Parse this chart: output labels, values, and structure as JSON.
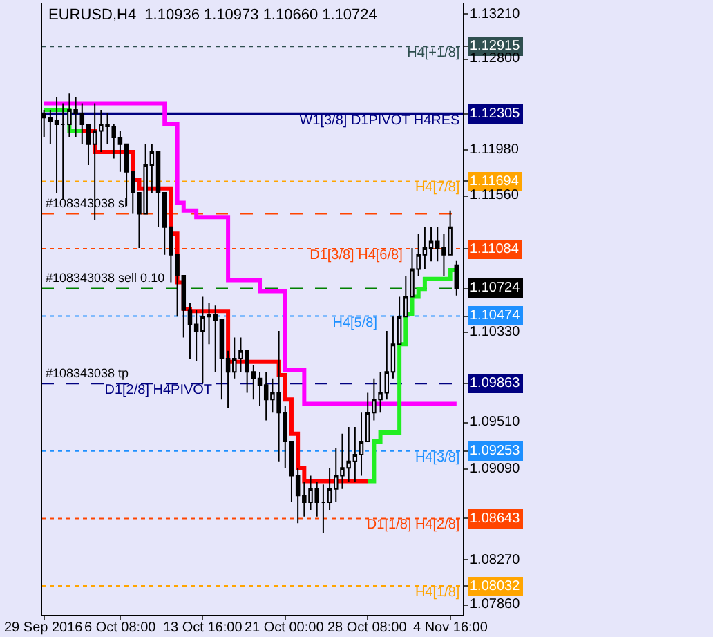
{
  "chart_data": {
    "type": "candlestick",
    "title": "EURUSD,H4  1.10936 1.10973 1.10660 1.10724",
    "categories": [
      "29 Sep 2016",
      null,
      null,
      null,
      null,
      null,
      null,
      null,
      null,
      null,
      null,
      null,
      "6 Oct 08:00",
      null,
      null,
      null,
      null,
      null,
      null,
      null,
      null,
      null,
      null,
      null,
      null,
      "13 Oct 16:00",
      null,
      null,
      null,
      null,
      null,
      null,
      null,
      null,
      null,
      null,
      null,
      null,
      "21 Oct 00:00",
      null,
      null,
      null,
      null,
      null,
      null,
      null,
      null,
      null,
      null,
      null,
      null,
      "28 Oct 08:00",
      null,
      null,
      null,
      null,
      null,
      null,
      null,
      null,
      null,
      null,
      null,
      null,
      "4 Nov 16:00",
      null
    ],
    "ohlc": [
      [
        1.1231,
        1.1234,
        1.1209,
        1.1227
      ],
      [
        1.1227,
        1.1234,
        1.1203,
        1.1224
      ],
      [
        1.1224,
        1.1246,
        1.1159,
        1.1221
      ],
      [
        1.1221,
        1.124,
        1.1153,
        1.1221
      ],
      [
        1.1221,
        1.1249,
        1.1209,
        1.1234
      ],
      [
        1.1234,
        1.1246,
        1.1209,
        1.1231
      ],
      [
        1.1231,
        1.124,
        1.1203,
        1.1221
      ],
      [
        1.1221,
        1.1221,
        1.1184,
        1.1203
      ],
      [
        1.1203,
        1.124,
        1.1134,
        1.1215
      ],
      [
        1.1215,
        1.1234,
        1.1196,
        1.1221
      ],
      [
        1.1221,
        1.1231,
        1.1203,
        1.1219
      ],
      [
        1.1219,
        1.1221,
        1.119,
        1.1209
      ],
      [
        1.1209,
        1.1215,
        1.1178,
        1.1203
      ],
      [
        1.1203,
        1.1203,
        1.1147,
        1.1178
      ],
      [
        1.1178,
        1.1178,
        1.114,
        1.1159
      ],
      [
        1.1159,
        1.1159,
        1.1109,
        1.114
      ],
      [
        1.114,
        1.1203,
        1.114,
        1.1184
      ],
      [
        1.1184,
        1.1203,
        1.1159,
        1.1196
      ],
      [
        1.1196,
        1.1196,
        1.1128,
        1.1159
      ],
      [
        1.1159,
        1.1159,
        1.1103,
        1.1128
      ],
      [
        1.1128,
        1.1128,
        1.1078,
        1.1103
      ],
      [
        1.1103,
        1.1103,
        1.1047,
        1.1084
      ],
      [
        1.1084,
        1.1084,
        1.1028,
        1.1053
      ],
      [
        1.1053,
        1.1059,
        1.1009,
        1.104
      ],
      [
        1.104,
        1.1053,
        1.1007,
        1.1034
      ],
      [
        1.1034,
        1.1065,
        1.0987,
        1.1047
      ],
      [
        1.1047,
        1.1059,
        1.1022,
        1.1049
      ],
      [
        1.1049,
        1.1057,
        1.0997,
        1.1044
      ],
      [
        1.1044,
        1.1044,
        1.0972,
        1.1009
      ],
      [
        1.1009,
        1.1016,
        1.0964,
        1.0997
      ],
      [
        1.0997,
        1.1028,
        1.0991,
        1.1009
      ],
      [
        1.1009,
        1.1028,
        1.0997,
        1.1016
      ],
      [
        1.1016,
        1.1016,
        1.0978,
        1.0997
      ],
      [
        1.0997,
        1.1003,
        1.0972,
        1.0991
      ],
      [
        1.0991,
        1.0997,
        1.0966,
        1.0985
      ],
      [
        1.0985,
        1.0997,
        1.0953,
        1.0972
      ],
      [
        1.0972,
        1.0991,
        1.096,
        1.0978
      ],
      [
        1.0978,
        1.1034,
        1.0916,
        1.096
      ],
      [
        1.096,
        1.0966,
        1.091,
        1.0934
      ],
      [
        1.0934,
        1.0934,
        1.0879,
        1.0903
      ],
      [
        1.0903,
        1.091,
        1.086,
        1.0885
      ],
      [
        1.0885,
        1.0897,
        1.0866,
        1.0879
      ],
      [
        1.0879,
        1.0903,
        1.0872,
        1.0891
      ],
      [
        1.0891,
        1.0897,
        1.0866,
        1.0879
      ],
      [
        1.0879,
        1.0895,
        1.0851,
        1.0879
      ],
      [
        1.0879,
        1.091,
        1.0872,
        1.0891
      ],
      [
        1.0891,
        1.0928,
        1.0879,
        1.0903
      ],
      [
        1.0903,
        1.0941,
        1.0891,
        1.091
      ],
      [
        1.091,
        1.0947,
        1.0897,
        1.0916
      ],
      [
        1.0916,
        1.0947,
        1.0897,
        1.0922
      ],
      [
        1.0922,
        1.096,
        1.0903,
        1.0934
      ],
      [
        1.0934,
        1.0978,
        1.0934,
        1.096
      ],
      [
        1.096,
        1.0991,
        1.0953,
        1.0972
      ],
      [
        1.0972,
        1.0997,
        1.096,
        1.0978
      ],
      [
        1.0978,
        1.1034,
        1.0972,
        1.0997
      ],
      [
        1.0997,
        1.1047,
        1.0991,
        1.1022
      ],
      [
        1.1022,
        1.1065,
        1.1022,
        1.1047
      ],
      [
        1.1047,
        1.1084,
        1.1047,
        1.1065
      ],
      [
        1.1065,
        1.1109,
        1.1065,
        1.109
      ],
      [
        1.109,
        1.1122,
        1.1084,
        1.1103
      ],
      [
        1.1103,
        1.1128,
        1.109,
        1.1109
      ],
      [
        1.1109,
        1.1128,
        1.1097,
        1.1115
      ],
      [
        1.1115,
        1.1128,
        1.1097,
        1.1109
      ],
      [
        1.1109,
        1.1122,
        1.1084,
        1.1103
      ],
      [
        1.1103,
        1.1143,
        1.1103,
        1.1128
      ],
      [
        1.10936,
        1.10973,
        1.1066,
        1.10724
      ]
    ],
    "series": [
      {
        "type": "step",
        "color": "#ff00ff",
        "values": [
          1.124,
          1.124,
          1.124,
          1.124,
          1.124,
          1.124,
          1.124,
          1.124,
          1.124,
          1.124,
          1.124,
          1.124,
          1.124,
          1.124,
          1.124,
          1.124,
          1.124,
          1.124,
          1.124,
          1.1221,
          1.1221,
          1.115,
          1.1143,
          1.1143,
          1.1137,
          1.1137,
          1.1137,
          1.1137,
          1.1137,
          1.108,
          1.108,
          1.108,
          1.108,
          1.108,
          1.107,
          1.107,
          1.107,
          1.107,
          1.0999,
          1.0999,
          1.0999,
          1.0968,
          1.0968,
          1.0968,
          1.0968,
          1.0968,
          1.0968,
          1.0968,
          1.0968,
          1.0968,
          1.0968,
          1.0968,
          1.0968,
          1.0968,
          1.0968,
          1.0968,
          1.0968,
          1.0968,
          1.0968,
          1.0968,
          1.0968,
          1.0968,
          1.0968,
          1.0968,
          1.0968,
          1.0968
        ]
      },
      {
        "type": "step",
        "color": "#ff0000",
        "values": [
          null,
          null,
          null,
          null,
          null,
          null,
          1.1215,
          1.1215,
          1.1196,
          1.1196,
          1.1196,
          1.1196,
          1.1196,
          1.1196,
          1.1171,
          1.1163,
          1.1163,
          1.1163,
          1.1163,
          1.1163,
          1.1122,
          1.1078,
          1.1054,
          1.1052,
          1.1052,
          1.1052,
          1.1052,
          1.1052,
          1.1052,
          1.1006,
          1.1006,
          1.1006,
          1.1006,
          1.1006,
          1.1006,
          1.1006,
          1.1006,
          1.0994,
          1.0972,
          1.0941,
          1.091,
          1.0898,
          1.0898,
          1.0898,
          1.0898,
          1.0898,
          1.0898,
          1.0898,
          1.0898,
          1.0898,
          1.0898,
          1.0898,
          null,
          null,
          null,
          null,
          null,
          null,
          null,
          null,
          null,
          null,
          null,
          null,
          null,
          null
        ]
      },
      {
        "type": "step",
        "color": "#22ee22",
        "values": [
          1.1234,
          1.1234,
          1.1234,
          1.1234,
          1.1215,
          1.1215,
          1.1215,
          null,
          null,
          null,
          null,
          null,
          null,
          null,
          null,
          null,
          null,
          null,
          null,
          null,
          null,
          null,
          null,
          null,
          null,
          null,
          null,
          null,
          null,
          null,
          null,
          null,
          null,
          null,
          null,
          null,
          null,
          null,
          null,
          null,
          null,
          null,
          null,
          null,
          null,
          null,
          null,
          null,
          null,
          null,
          null,
          1.0898,
          1.0934,
          1.0942,
          1.0942,
          1.0942,
          1.1022,
          1.1049,
          1.1065,
          1.1072,
          1.1081,
          1.1081,
          1.1081,
          1.1081,
          1.1089,
          1.1089
        ]
      }
    ],
    "ylim": [
      1.0777,
      1.1331
    ],
    "yticks": [
      {
        "value": 1.1321,
        "label": "1.13210"
      },
      {
        "value": 1.12915,
        "label": "1.12915"
      },
      {
        "value": 1.128,
        "label": "1.12800"
      },
      {
        "value": 1.12305,
        "label": "1.12305"
      },
      {
        "value": 1.1198,
        "label": "1.11980"
      },
      {
        "value": 1.11694,
        "label": "1.11694"
      },
      {
        "value": 1.1156,
        "label": "1.11560"
      },
      {
        "value": 1.11084,
        "label": "1.11084"
      },
      {
        "value": 1.10724,
        "label": "1.10724"
      },
      {
        "value": 1.10474,
        "label": "1.10474"
      },
      {
        "value": 1.1033,
        "label": "1.10330"
      },
      {
        "value": 1.09863,
        "label": "1.09863"
      },
      {
        "value": 1.0951,
        "label": "1.09510"
      },
      {
        "value": 1.09253,
        "label": "1.09253"
      },
      {
        "value": 1.0909,
        "label": "1.09090"
      },
      {
        "value": 1.08643,
        "label": "1.08643"
      },
      {
        "value": 1.0827,
        "label": "1.08270"
      },
      {
        "value": 1.08032,
        "label": "1.08032"
      },
      {
        "value": 1.0786,
        "label": "1.07860"
      }
    ],
    "ref_lines": [
      {
        "axis": "y",
        "value": 1.12915,
        "color": "#2f4f4f",
        "line_style": "dotted"
      },
      {
        "axis": "y",
        "value": 1.12305,
        "color": "#000080",
        "line_style": "solid"
      },
      {
        "axis": "y",
        "value": 1.11694,
        "color": "#ffa500",
        "line_style": "dotted"
      },
      {
        "axis": "y",
        "value": 1.114,
        "label": "#108343038 sl",
        "color": "#ff4500",
        "line_style": "dashed"
      },
      {
        "axis": "y",
        "value": 1.11084,
        "color": "#ff4500",
        "line_style": "dotted"
      },
      {
        "axis": "y",
        "value": 1.10724,
        "label": "#108343038 sell 0.10",
        "color": "#008000",
        "line_style": "dashed"
      },
      {
        "axis": "y",
        "value": 1.10474,
        "color": "#1e90ff",
        "line_style": "dotted"
      },
      {
        "axis": "y",
        "value": 1.09863,
        "label": "#108343038 tp",
        "color": "#000080",
        "line_style": "dashed"
      },
      {
        "axis": "y",
        "value": 1.09253,
        "color": "#1e90ff",
        "line_style": "dotted"
      },
      {
        "axis": "y",
        "value": 1.08643,
        "color": "#ff4500",
        "line_style": "dotted"
      },
      {
        "axis": "y",
        "value": 1.08032,
        "color": "#ffa500",
        "line_style": "dotted"
      }
    ],
    "annotations": [
      {
        "text": "H4[+1/8]",
        "y": 1.12915
      },
      {
        "text": "W1[3/8] D1PIVOT H4RES",
        "y": 1.12305
      },
      {
        "text": "H4[7/8]",
        "y": 1.11694
      },
      {
        "text": "D1[3/8] H4[6/8]",
        "y": 1.11084
      },
      {
        "text": "H4[5/8]",
        "y": 1.10474
      },
      {
        "text": "D1[2/8] H4PIVOT",
        "y": 1.09863
      },
      {
        "text": "H4[3/8]",
        "y": 1.09253
      },
      {
        "text": "D1[1/8] H4[2/8]",
        "y": 1.08643
      },
      {
        "text": "H4[1/8]",
        "y": 1.08032
      }
    ],
    "grid": false
  }
}
